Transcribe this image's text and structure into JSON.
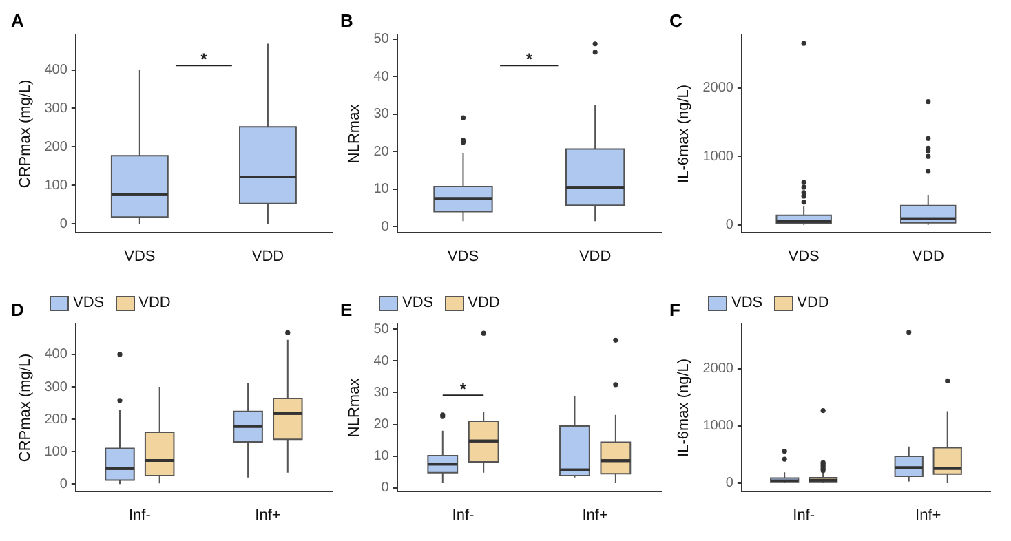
{
  "chart_data": [
    {
      "type": "box",
      "title": "A",
      "ylabel": "CRPmax (mg/L)",
      "categories": [
        "VDS",
        "VDD"
      ],
      "ylim": [
        -22,
        490
      ],
      "yticks": [
        0,
        100,
        200,
        300,
        400
      ],
      "grid": false,
      "legend": false,
      "series": [
        {
          "color": "#aec8f0",
          "boxes": [
            {
              "low": 0,
              "q1": 18,
              "median": 76,
              "q3": 177,
              "high": 400
            },
            {
              "low": 0,
              "q1": 53,
              "median": 122,
              "q3": 252,
              "high": 468
            }
          ]
        }
      ],
      "annotations": [
        "*"
      ]
    },
    {
      "type": "box",
      "title": "B",
      "ylabel": "NLRmax",
      "categories": [
        "VDS",
        "VDD"
      ],
      "ylim": [
        -1.5,
        51
      ],
      "yticks": [
        0,
        10,
        20,
        30,
        40,
        50
      ],
      "grid": false,
      "legend": false,
      "series": [
        {
          "color": "#aec8f0",
          "boxes": [
            {
              "low": 1.5,
              "q1": 4,
              "median": 7.5,
              "q3": 10.7,
              "high": 19.5,
              "outliers": [
                22.5,
                23,
                29
              ]
            },
            {
              "low": 1.5,
              "q1": 5.7,
              "median": 10.5,
              "q3": 20.7,
              "high": 32.5,
              "outliers": [
                46.5,
                48.7
              ]
            }
          ]
        }
      ],
      "annotations": [
        "*"
      ]
    },
    {
      "type": "box",
      "title": "C",
      "ylabel": "IL-6max (ng/L)",
      "categories": [
        "VDS",
        "VDD"
      ],
      "ylim": [
        -110,
        2770
      ],
      "yticks": [
        0,
        1000,
        2000
      ],
      "grid": false,
      "legend": false,
      "series": [
        {
          "color": "#aec8f0",
          "boxes": [
            {
              "low": 0,
              "q1": 20,
              "median": 50,
              "q3": 140,
              "high": 270,
              "outliers": [
                330,
                420,
                470,
                550,
                620,
                2650
              ]
            },
            {
              "low": 0,
              "q1": 30,
              "median": 90,
              "q3": 280,
              "high": 440,
              "outliers": [
                780,
                1000,
                1080,
                1120,
                1260,
                1800
              ]
            }
          ]
        }
      ]
    },
    {
      "type": "box",
      "title": "D",
      "ylabel": "CRPmax (mg/L)",
      "categories": [
        "Inf-",
        "Inf+"
      ],
      "ylim": [
        -22,
        493
      ],
      "yticks": [
        0,
        100,
        200,
        300,
        400
      ],
      "grid": false,
      "legend": "top left",
      "series": [
        {
          "name": "VDS",
          "color": "#aec8f0",
          "boxes": [
            {
              "low": 0,
              "q1": 12,
              "median": 48,
              "q3": 110,
              "high": 230,
              "outliers": [
                258,
                400
              ]
            },
            {
              "low": 20,
              "q1": 130,
              "median": 178,
              "q3": 224,
              "high": 312
            }
          ]
        },
        {
          "name": "VDD",
          "color": "#f2d59e",
          "boxes": [
            {
              "low": 2,
              "q1": 26,
              "median": 73,
              "q3": 160,
              "high": 300
            },
            {
              "low": 35,
              "q1": 138,
              "median": 218,
              "q3": 264,
              "high": 445,
              "outliers": [
                467
              ]
            }
          ]
        }
      ]
    },
    {
      "type": "box",
      "title": "E",
      "ylabel": "NLRmax",
      "categories": [
        "Inf-",
        "Inf+"
      ],
      "ylim": [
        -1,
        51.5
      ],
      "yticks": [
        0,
        10,
        20,
        30,
        40,
        50
      ],
      "grid": false,
      "legend": "top left",
      "series": [
        {
          "name": "VDS",
          "color": "#aec8f0",
          "boxes": [
            {
              "low": 1.5,
              "q1": 4.8,
              "median": 7.5,
              "q3": 10.2,
              "high": 18,
              "outliers": [
                22.5,
                23
              ]
            },
            {
              "low": 3.3,
              "q1": 3.9,
              "median": 5.7,
              "q3": 19.5,
              "high": 29
            }
          ]
        },
        {
          "name": "VDD",
          "color": "#f2d59e",
          "boxes": [
            {
              "low": 4.8,
              "q1": 8.2,
              "median": 14.8,
              "q3": 21,
              "high": 24,
              "outliers": [
                48.7
              ]
            },
            {
              "low": 1.5,
              "q1": 4.5,
              "median": 8.6,
              "q3": 14.4,
              "high": 23,
              "outliers": [
                32.5,
                46.5
              ]
            }
          ]
        }
      ],
      "annotations": [
        "*"
      ]
    },
    {
      "type": "box",
      "title": "F",
      "ylabel": "IL-6max (ng/L)",
      "categories": [
        "Inf-",
        "Inf+"
      ],
      "ylim": [
        -140,
        2780
      ],
      "yticks": [
        0,
        1000,
        2000
      ],
      "grid": false,
      "legend": "top left",
      "series": [
        {
          "name": "VDS",
          "color": "#aec8f0",
          "boxes": [
            {
              "low": 0,
              "q1": 15,
              "median": 40,
              "q3": 90,
              "high": 190,
              "outliers": [
                420,
                560
              ]
            },
            {
              "low": 30,
              "q1": 120,
              "median": 270,
              "q3": 470,
              "high": 640,
              "outliers": [
                2640
              ]
            }
          ]
        },
        {
          "name": "VDD",
          "color": "#f2d59e",
          "boxes": [
            {
              "low": 0,
              "q1": 15,
              "median": 50,
              "q3": 95,
              "high": 190,
              "outliers": [
                220,
                250,
                280,
                310,
                340,
                360,
                1270
              ]
            },
            {
              "low": 0,
              "q1": 160,
              "median": 260,
              "q3": 620,
              "high": 1260,
              "outliers": [
                1790
              ]
            }
          ]
        }
      ]
    }
  ]
}
